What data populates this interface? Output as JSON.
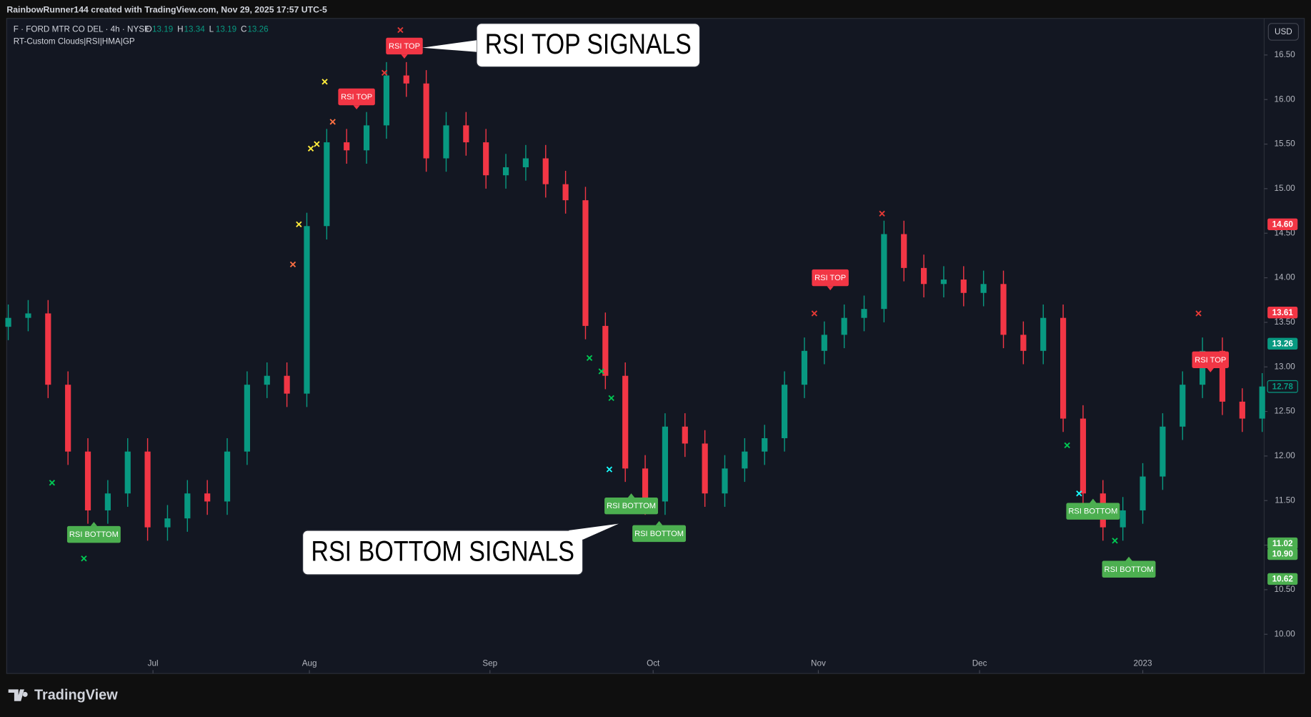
{
  "header": "RainbowRunner144 created with TradingView.com, Nov 29, 2025 17:57 UTC-5",
  "footer_brand": "TradingView",
  "chart_data": {
    "type": "candlestick",
    "symbol": "F · FORD MTR CO DEL · 4h · NYSE",
    "ohlc": [
      {
        "label": "O",
        "value": 13.19
      },
      {
        "label": "H",
        "value": 13.34
      },
      {
        "label": "L",
        "value": 13.19
      },
      {
        "label": "C",
        "value": 13.26
      }
    ],
    "indicator": "RT-Custom Clouds|RSI|HMA|GP",
    "currency": "USD",
    "up_color": "#089981",
    "down_color": "#f23645",
    "x": [
      0,
      1,
      2,
      3,
      4,
      5,
      6,
      7,
      8,
      9,
      10,
      11,
      12,
      13,
      14,
      15,
      16,
      17,
      18,
      19,
      20,
      21,
      22,
      23,
      24,
      25,
      26,
      27,
      28,
      29,
      30,
      31,
      32,
      33,
      34,
      35,
      36,
      37,
      38,
      39,
      40,
      41,
      42,
      43,
      44,
      45,
      46,
      47,
      48,
      49,
      50,
      51,
      52,
      53,
      54,
      55,
      56,
      57,
      58,
      59,
      60,
      61,
      62,
      63
    ],
    "open": [
      13.45,
      13.55,
      13.6,
      12.8,
      12.05,
      11.39,
      11.58,
      12.05,
      11.2,
      11.3,
      11.58,
      11.49,
      12.05,
      12.8,
      12.9,
      12.7,
      14.58,
      15.52,
      15.43,
      15.71,
      16.27,
      16.18,
      15.34,
      15.71,
      15.52,
      15.15,
      15.24,
      15.34,
      15.05,
      14.87,
      13.46,
      12.9,
      11.86,
      11.49,
      12.33,
      12.14,
      11.58,
      11.86,
      12.05,
      12.2,
      12.8,
      13.18,
      13.36,
      13.55,
      13.65,
      14.49,
      14.11,
      13.93,
      13.98,
      13.83,
      13.93,
      13.36,
      13.18,
      13.55,
      12.42,
      11.58,
      11.2,
      11.39,
      11.77,
      12.33,
      12.8,
      13.18,
      12.61,
      12.42
    ],
    "high": [
      13.7,
      13.75,
      13.75,
      12.95,
      12.2,
      11.73,
      12.2,
      12.2,
      11.45,
      11.73,
      11.73,
      12.2,
      12.95,
      13.05,
      13.05,
      14.73,
      15.67,
      15.67,
      15.86,
      16.42,
      16.42,
      16.33,
      15.86,
      15.86,
      15.67,
      15.39,
      15.49,
      15.49,
      15.2,
      15.02,
      13.61,
      13.05,
      12.01,
      12.48,
      12.48,
      12.29,
      12.01,
      12.2,
      12.35,
      12.95,
      13.33,
      13.51,
      13.7,
      13.8,
      14.64,
      14.64,
      14.26,
      14.13,
      14.13,
      14.08,
      14.08,
      13.51,
      13.7,
      13.7,
      12.57,
      11.73,
      11.54,
      11.92,
      12.48,
      12.95,
      13.33,
      13.33,
      12.76,
      12.93
    ],
    "low": [
      13.3,
      13.4,
      12.65,
      11.9,
      11.24,
      11.24,
      11.43,
      11.05,
      11.05,
      11.15,
      11.34,
      11.34,
      11.9,
      12.65,
      12.55,
      12.55,
      14.43,
      15.28,
      15.28,
      15.56,
      16.03,
      15.19,
      15.19,
      15.37,
      15.0,
      15.0,
      15.09,
      14.9,
      14.72,
      13.31,
      12.75,
      11.71,
      11.34,
      11.34,
      11.99,
      11.43,
      11.43,
      11.71,
      11.9,
      12.05,
      12.65,
      13.03,
      13.21,
      13.4,
      13.5,
      13.96,
      13.78,
      13.78,
      13.68,
      13.68,
      13.21,
      13.03,
      13.03,
      12.27,
      11.43,
      11.05,
      11.05,
      11.24,
      11.62,
      12.18,
      12.65,
      12.46,
      12.27,
      12.27
    ],
    "close": [
      13.55,
      13.6,
      12.8,
      12.05,
      11.39,
      11.58,
      12.05,
      11.2,
      11.3,
      11.58,
      11.49,
      12.05,
      12.8,
      12.9,
      12.7,
      14.58,
      15.52,
      15.43,
      15.71,
      16.27,
      16.18,
      15.34,
      15.71,
      15.52,
      15.15,
      15.24,
      15.34,
      15.05,
      14.87,
      13.46,
      12.9,
      11.86,
      11.49,
      12.33,
      12.14,
      11.58,
      11.86,
      12.05,
      12.2,
      12.8,
      13.18,
      13.36,
      13.55,
      13.65,
      14.49,
      14.11,
      13.93,
      13.98,
      13.83,
      13.93,
      13.36,
      13.18,
      13.55,
      12.42,
      11.58,
      11.2,
      11.39,
      11.77,
      12.33,
      12.8,
      13.18,
      12.61,
      12.42,
      12.78
    ],
    "xlim": [
      -0.08,
      63.1
    ],
    "ylim": [
      9.56,
      16.91
    ],
    "xticks": [
      {
        "value": 7.27,
        "label": "Jul"
      },
      {
        "value": 15.13,
        "label": "Aug"
      },
      {
        "value": 24.2,
        "label": "Sep"
      },
      {
        "value": 32.4,
        "label": "Oct"
      },
      {
        "value": 40.7,
        "label": "Nov"
      },
      {
        "value": 48.8,
        "label": "Dec"
      },
      {
        "value": 57.0,
        "label": "2023"
      }
    ],
    "yticks": [
      {
        "value": 10,
        "label": "10.00"
      },
      {
        "value": 10.5,
        "label": "10.50"
      },
      {
        "value": 11,
        "label": "11.00"
      },
      {
        "value": 11.5,
        "label": "11.50"
      },
      {
        "value": 12,
        "label": "12.00"
      },
      {
        "value": 12.5,
        "label": "12.50"
      },
      {
        "value": 13,
        "label": "13.00"
      },
      {
        "value": 13.5,
        "label": "13.50"
      },
      {
        "value": 14,
        "label": "14.00"
      },
      {
        "value": 14.5,
        "label": "14.50"
      },
      {
        "value": 15,
        "label": "15.00"
      },
      {
        "value": 15.5,
        "label": "15.50"
      },
      {
        "value": 16,
        "label": "16.00"
      },
      {
        "value": 16.5,
        "label": "16.50"
      }
    ],
    "price_labels": [
      {
        "value": 14.6,
        "label": "14.60",
        "color": "#f23645"
      },
      {
        "value": 13.61,
        "label": "13.61",
        "color": "#f23645"
      },
      {
        "value": 13.26,
        "label": "13.26",
        "color": "#089981"
      },
      {
        "value": 12.78,
        "label": "12.78",
        "color": "#131722"
      },
      {
        "value": 11.02,
        "label": "11.02",
        "color": "#4caf50"
      },
      {
        "value": 10.9,
        "label": "10.90",
        "color": "#4caf50"
      },
      {
        "value": 10.62,
        "label": "10.62",
        "color": "#4caf50"
      }
    ],
    "signals": [
      {
        "label": "RSI TOP",
        "x": 17.5,
        "y": 16.03,
        "color": "#f23645"
      },
      {
        "label": "RSI TOP",
        "x": 19.9,
        "y": 16.6,
        "color": "#f23645"
      },
      {
        "label": "RSI TOP",
        "x": 41.3,
        "y": 14.0,
        "color": "#f23645"
      },
      {
        "label": "RSI TOP",
        "x": 60.4,
        "y": 13.08,
        "color": "#f23645"
      },
      {
        "label": "RSI BOTTOM",
        "x": 4.3,
        "y": 11.12,
        "color": "#4caf50"
      },
      {
        "label": "RSI BOTTOM",
        "x": 31.3,
        "y": 11.44,
        "color": "#4caf50"
      },
      {
        "label": "RSI BOTTOM",
        "x": 32.7,
        "y": 11.13,
        "color": "#4caf50"
      },
      {
        "label": "RSI BOTTOM",
        "x": 54.5,
        "y": 11.38,
        "color": "#4caf50"
      },
      {
        "label": "RSI BOTTOM",
        "x": 56.3,
        "y": 10.73,
        "color": "#4caf50"
      }
    ],
    "crosses": [
      {
        "x": 15.2,
        "y": 15.45,
        "color": "#ffeb3b"
      },
      {
        "x": 15.5,
        "y": 15.5,
        "color": "#ffeb3b"
      },
      {
        "x": 15.9,
        "y": 16.2,
        "color": "#ffeb3b"
      },
      {
        "x": 14.6,
        "y": 14.6,
        "color": "#ffeb3b"
      },
      {
        "x": 14.3,
        "y": 14.15,
        "color": "#ff7043"
      },
      {
        "x": 16.3,
        "y": 15.75,
        "color": "#ff7043"
      },
      {
        "x": 18.9,
        "y": 16.3,
        "color": "#e53935"
      },
      {
        "x": 19.7,
        "y": 16.78,
        "color": "#e53935"
      },
      {
        "x": 2.2,
        "y": 11.7,
        "color": "#00c853"
      },
      {
        "x": 3.8,
        "y": 10.85,
        "color": "#00c853"
      },
      {
        "x": 29.2,
        "y": 13.1,
        "color": "#00c853"
      },
      {
        "x": 29.8,
        "y": 12.95,
        "color": "#00c853"
      },
      {
        "x": 30.3,
        "y": 12.65,
        "color": "#00c853"
      },
      {
        "x": 30.2,
        "y": 11.85,
        "color": "#18ffff"
      },
      {
        "x": 40.5,
        "y": 13.6,
        "color": "#e53935"
      },
      {
        "x": 43.9,
        "y": 14.72,
        "color": "#e53935"
      },
      {
        "x": 59.8,
        "y": 13.6,
        "color": "#e53935"
      },
      {
        "x": 53.2,
        "y": 12.12,
        "color": "#00c853"
      },
      {
        "x": 53.8,
        "y": 11.58,
        "color": "#18ffff"
      },
      {
        "x": 55.6,
        "y": 11.05,
        "color": "#00c853"
      }
    ],
    "callouts": [
      "RSI TOP SIGNALS",
      "RSI BOTTOM SIGNALS"
    ]
  }
}
